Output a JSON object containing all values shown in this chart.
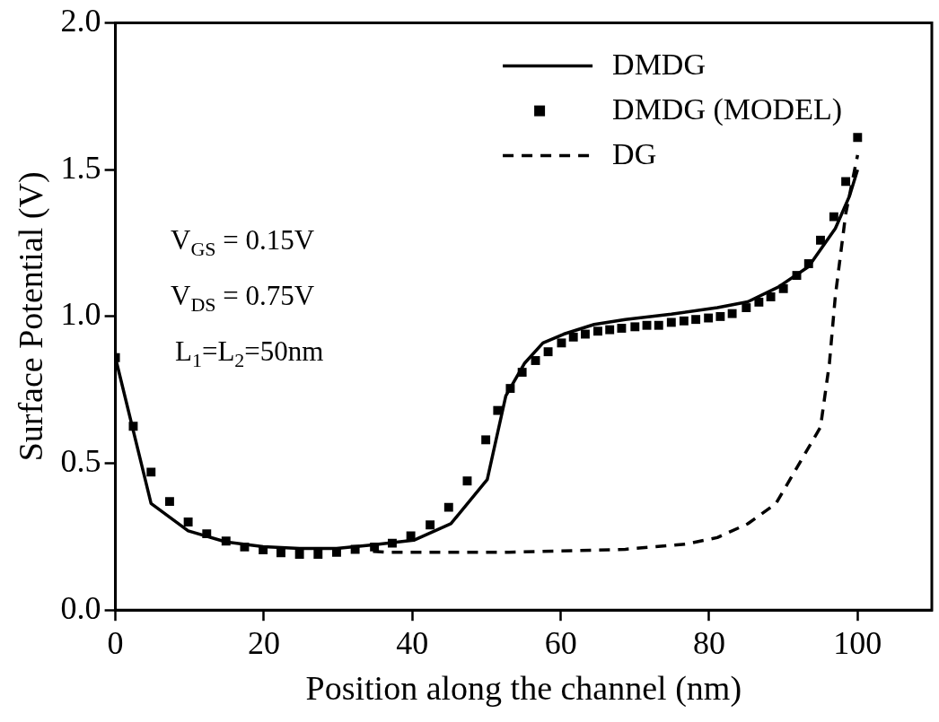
{
  "chart_data": {
    "type": "line",
    "xlabel": "Position along the channel (nm)",
    "ylabel": "Surface Potential (V)",
    "xlim": [
      0,
      110
    ],
    "xticks": [
      0,
      20,
      40,
      60,
      80,
      100
    ],
    "ylim": [
      0,
      2
    ],
    "yticks": [
      {
        "value": 0,
        "label": "0.0"
      },
      {
        "value": 0.5,
        "label": "0.5"
      },
      {
        "value": 1,
        "label": "1.0"
      },
      {
        "value": 1.5,
        "label": "1.5"
      },
      {
        "value": 2,
        "label": "2.0"
      }
    ],
    "grid": false,
    "legend": "top right",
    "annotations": [
      "V$_{GS}$ = 0.15V",
      "V$_{DS}$ = 0.75V",
      "L$_{1}$=L$_{2}$=50nm"
    ],
    "series": [
      {
        "name": "DMDG",
        "type": "line",
        "color": "#000000",
        "line_style": "solid",
        "marker": "none",
        "x": [
          0,
          4.8,
          9.8,
          14.9,
          19.9,
          24.8,
          29.8,
          34.7,
          40.2,
          45.2,
          50.1,
          52.6,
          55.1,
          57.6,
          60.4,
          64.5,
          68.7,
          74.9,
          81.1,
          85.2,
          89.3,
          93.4,
          97.0,
          98.9,
          100
        ],
        "values": [
          0.86,
          0.363,
          0.27,
          0.232,
          0.216,
          0.21,
          0.21,
          0.222,
          0.238,
          0.294,
          0.445,
          0.73,
          0.84,
          0.91,
          0.94,
          0.973,
          0.99,
          1.008,
          1.03,
          1.05,
          1.1,
          1.17,
          1.3,
          1.41,
          1.5
        ]
      },
      {
        "name": "DMDG (MODEL)",
        "type": "scatter",
        "color": "#000000",
        "marker": "square",
        "x": [
          0,
          2.4,
          4.8,
          7.3,
          9.8,
          12.3,
          14.9,
          17.4,
          19.9,
          22.3,
          24.8,
          27.3,
          29.8,
          32.3,
          34.9,
          37.3,
          39.8,
          42.4,
          44.9,
          47.4,
          49.9,
          51.5,
          53.2,
          54.8,
          56.6,
          58.3,
          60.1,
          61.7,
          63.3,
          65.0,
          66.6,
          68.2,
          70.0,
          71.6,
          73.2,
          74.9,
          76.6,
          78.2,
          79.9,
          81.5,
          83.1,
          85.0,
          86.7,
          88.3,
          90.0,
          91.8,
          93.4,
          95.0,
          96.8,
          98.4,
          100
        ],
        "values": [
          0.86,
          0.626,
          0.47,
          0.37,
          0.3,
          0.26,
          0.235,
          0.215,
          0.205,
          0.195,
          0.19,
          0.19,
          0.197,
          0.207,
          0.215,
          0.228,
          0.253,
          0.29,
          0.35,
          0.44,
          0.58,
          0.68,
          0.755,
          0.81,
          0.85,
          0.88,
          0.91,
          0.93,
          0.94,
          0.95,
          0.955,
          0.96,
          0.965,
          0.97,
          0.97,
          0.98,
          0.985,
          0.99,
          0.995,
          1.0,
          1.01,
          1.03,
          1.049,
          1.067,
          1.095,
          1.14,
          1.18,
          1.26,
          1.34,
          1.46,
          1.61
        ]
      },
      {
        "name": "DG",
        "type": "line",
        "color": "#000000",
        "line_style": "dashed",
        "marker": "none",
        "x": [
          34.7,
          36.5,
          53.0,
          68.7,
          76.9,
          81.1,
          85.2,
          89.0,
          95.0,
          96.2,
          97.0,
          98.4,
          100
        ],
        "values": [
          0.2,
          0.197,
          0.197,
          0.207,
          0.225,
          0.247,
          0.294,
          0.363,
          0.623,
          0.84,
          1.07,
          1.35,
          1.55
        ]
      }
    ]
  }
}
